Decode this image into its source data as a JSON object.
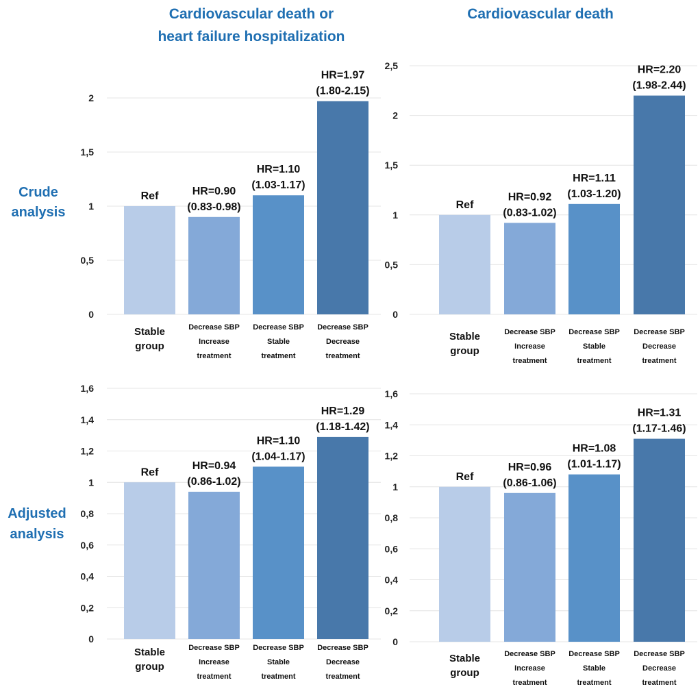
{
  "column_titles": [
    [
      "Cardiovascular death or",
      "heart failure hospitalization"
    ],
    [
      "Cardiovascular death"
    ]
  ],
  "row_labels": [
    [
      "Crude",
      "analysis"
    ],
    [
      "Adjusted",
      "analysis"
    ]
  ],
  "categories": [
    [
      "Stable",
      "group"
    ],
    [
      "Decrease SBP",
      "Increase",
      "treatment"
    ],
    [
      "Decrease SBP",
      "Stable",
      "treatment"
    ],
    [
      "Decrease SBP",
      "Decrease",
      "treatment"
    ]
  ],
  "colors": [
    "#b8cce8",
    "#84a9d8",
    "#5891c8",
    "#4878aa"
  ],
  "chart_data": [
    {
      "type": "bar",
      "title": "Cardiovascular death or heart failure hospitalization",
      "row": "Crude analysis",
      "categories": [
        "Stable group",
        "Decrease SBP Increase treatment",
        "Decrease SBP Stable treatment",
        "Decrease SBP Decrease treatment"
      ],
      "values": [
        1.0,
        0.9,
        1.1,
        1.97
      ],
      "labels": [
        [
          "Ref"
        ],
        [
          "HR=0.90",
          "(0.83-0.98)"
        ],
        [
          "HR=1.10",
          "(1.03-1.17)"
        ],
        [
          "HR=1.97",
          "(1.80-2.15)"
        ]
      ],
      "ylim": [
        0,
        2
      ],
      "yticks": [
        "0",
        "0,5",
        "1",
        "1,5",
        "2"
      ],
      "ytick_values": [
        0,
        0.5,
        1,
        1.5,
        2
      ],
      "grid": true
    },
    {
      "type": "bar",
      "title": "Cardiovascular death",
      "row": "Crude analysis",
      "categories": [
        "Stable group",
        "Decrease SBP Increase treatment",
        "Decrease SBP Stable treatment",
        "Decrease SBP Decrease treatment"
      ],
      "values": [
        1.0,
        0.92,
        1.11,
        2.2
      ],
      "labels": [
        [
          "Ref"
        ],
        [
          "HR=0.92",
          "(0.83-1.02)"
        ],
        [
          "HR=1.11",
          "(1.03-1.20)"
        ],
        [
          "HR=2.20",
          "(1.98-2.44)"
        ]
      ],
      "ylim": [
        0,
        2.5
      ],
      "yticks": [
        "0",
        "0,5",
        "1",
        "1,5",
        "2",
        "2,5"
      ],
      "ytick_values": [
        0,
        0.5,
        1,
        1.5,
        2,
        2.5
      ],
      "grid": true
    },
    {
      "type": "bar",
      "title": "Cardiovascular death or heart failure hospitalization",
      "row": "Adjusted analysis",
      "categories": [
        "Stable group",
        "Decrease SBP Increase treatment",
        "Decrease SBP Stable treatment",
        "Decrease SBP Decrease treatment"
      ],
      "values": [
        1.0,
        0.94,
        1.1,
        1.29
      ],
      "labels": [
        [
          "Ref"
        ],
        [
          "HR=0.94",
          "(0.86-1.02)"
        ],
        [
          "HR=1.10",
          "(1.04-1.17)"
        ],
        [
          "HR=1.29",
          "(1.18-1.42)"
        ]
      ],
      "ylim": [
        0,
        1.6
      ],
      "yticks": [
        "0",
        "0,2",
        "0,4",
        "0,6",
        "0,8",
        "1",
        "1,2",
        "1,4",
        "1,6"
      ],
      "ytick_values": [
        0,
        0.2,
        0.4,
        0.6,
        0.8,
        1,
        1.2,
        1.4,
        1.6
      ],
      "grid": true
    },
    {
      "type": "bar",
      "title": "Cardiovascular death",
      "row": "Adjusted analysis",
      "categories": [
        "Stable group",
        "Decrease SBP Increase treatment",
        "Decrease SBP Stable treatment",
        "Decrease SBP Decrease treatment"
      ],
      "values": [
        1.0,
        0.96,
        1.08,
        1.31
      ],
      "labels": [
        [
          "Ref"
        ],
        [
          "HR=0.96",
          "(0.86-1.06)"
        ],
        [
          "HR=1.08",
          "(1.01-1.17)"
        ],
        [
          "HR=1.31",
          "(1.17-1.46)"
        ]
      ],
      "ylim": [
        0,
        1.6
      ],
      "yticks": [
        "0",
        "0,2",
        "0,4",
        "0,6",
        "0,8",
        "1",
        "1,2",
        "1,4",
        "1,6"
      ],
      "ytick_values": [
        0,
        0.2,
        0.4,
        0.6,
        0.8,
        1,
        1.2,
        1.4,
        1.6
      ],
      "grid": true
    }
  ]
}
